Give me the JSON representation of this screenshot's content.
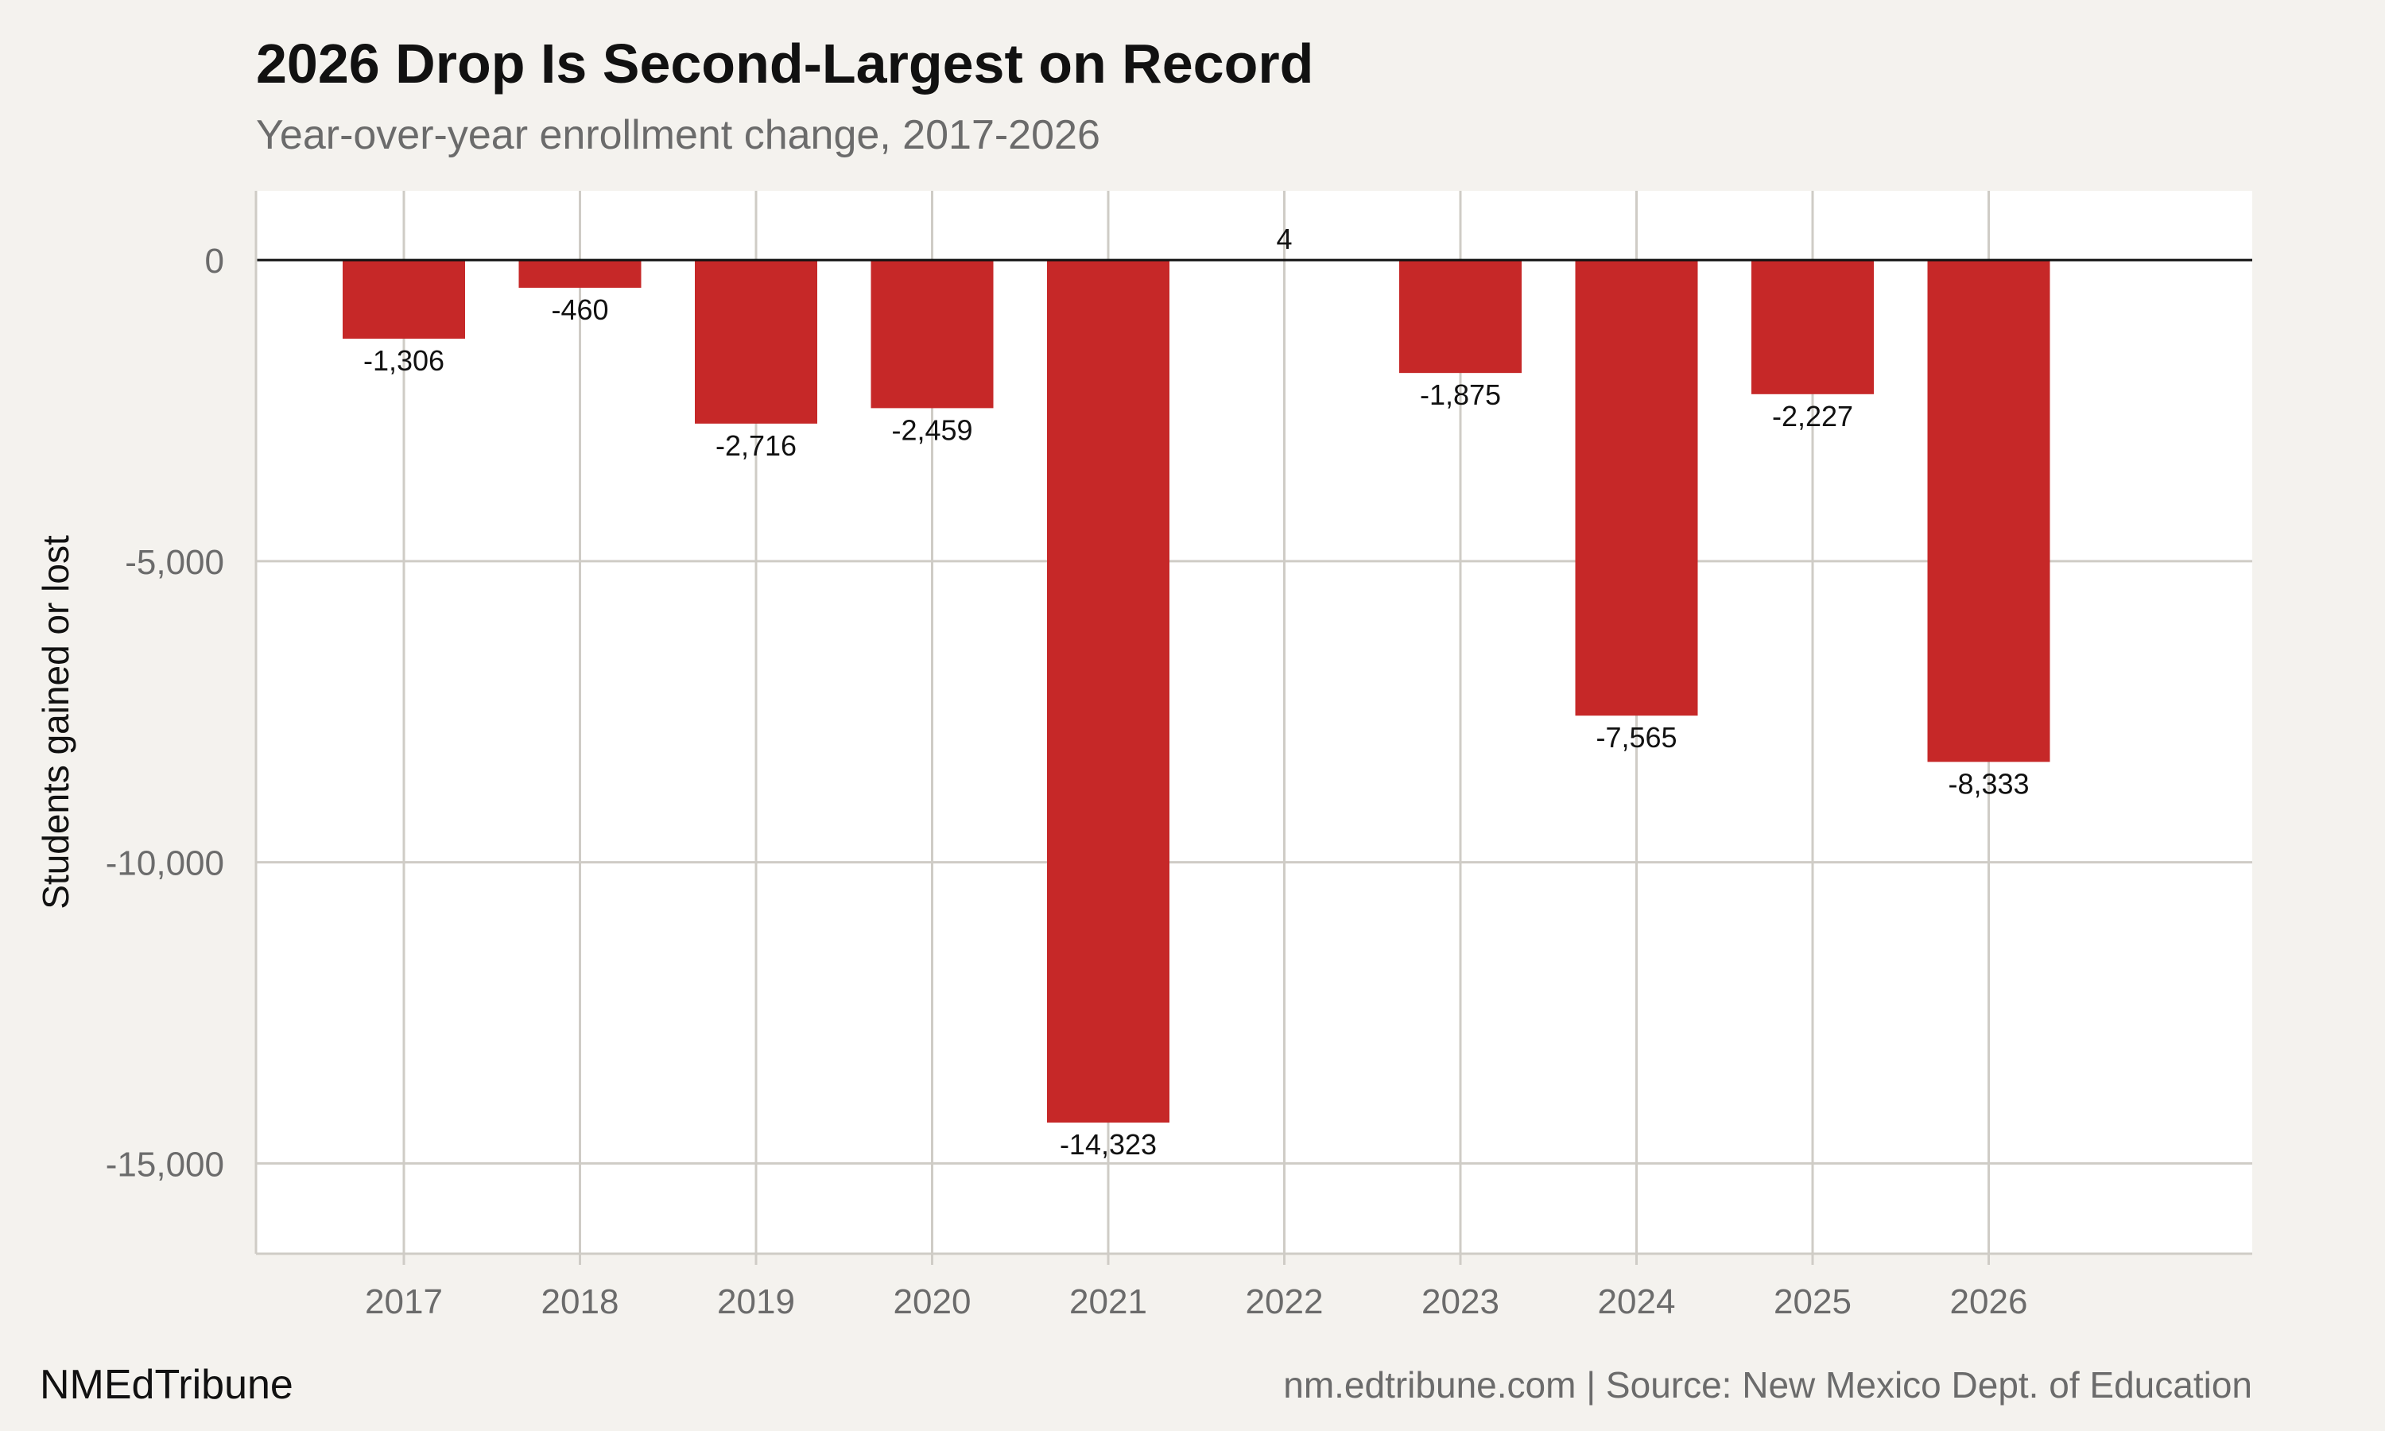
{
  "chart_data": {
    "type": "bar",
    "title": "2026 Drop Is Second-Largest on Record",
    "subtitle": "Year-over-year enrollment change, 2017-2026",
    "xlabel": "",
    "ylabel": "Students gained or lost",
    "categories": [
      "2017",
      "2018",
      "2019",
      "2020",
      "2021",
      "2022",
      "2023",
      "2024",
      "2025",
      "2026"
    ],
    "values": [
      -1306,
      -460,
      -2716,
      -2459,
      -14323,
      4,
      -1875,
      -7565,
      -2227,
      -8333
    ],
    "value_labels": [
      "-1,306",
      "-460",
      "-2,716",
      "-2,459",
      "-14,323",
      "4",
      "-1,875",
      "-7,565",
      "-2,227",
      "-8,333"
    ],
    "ylim": [
      -16500,
      1150
    ],
    "yticks": [
      0,
      -5000,
      -10000,
      -15000
    ],
    "ytick_labels": [
      "0",
      "-5,000",
      "-10,000",
      "-15,000"
    ],
    "grid": true,
    "bar_color": "#c62828",
    "brand": "NMEdTribune",
    "source": "nm.edtribune.com | Source: New Mexico Dept. of Education"
  }
}
